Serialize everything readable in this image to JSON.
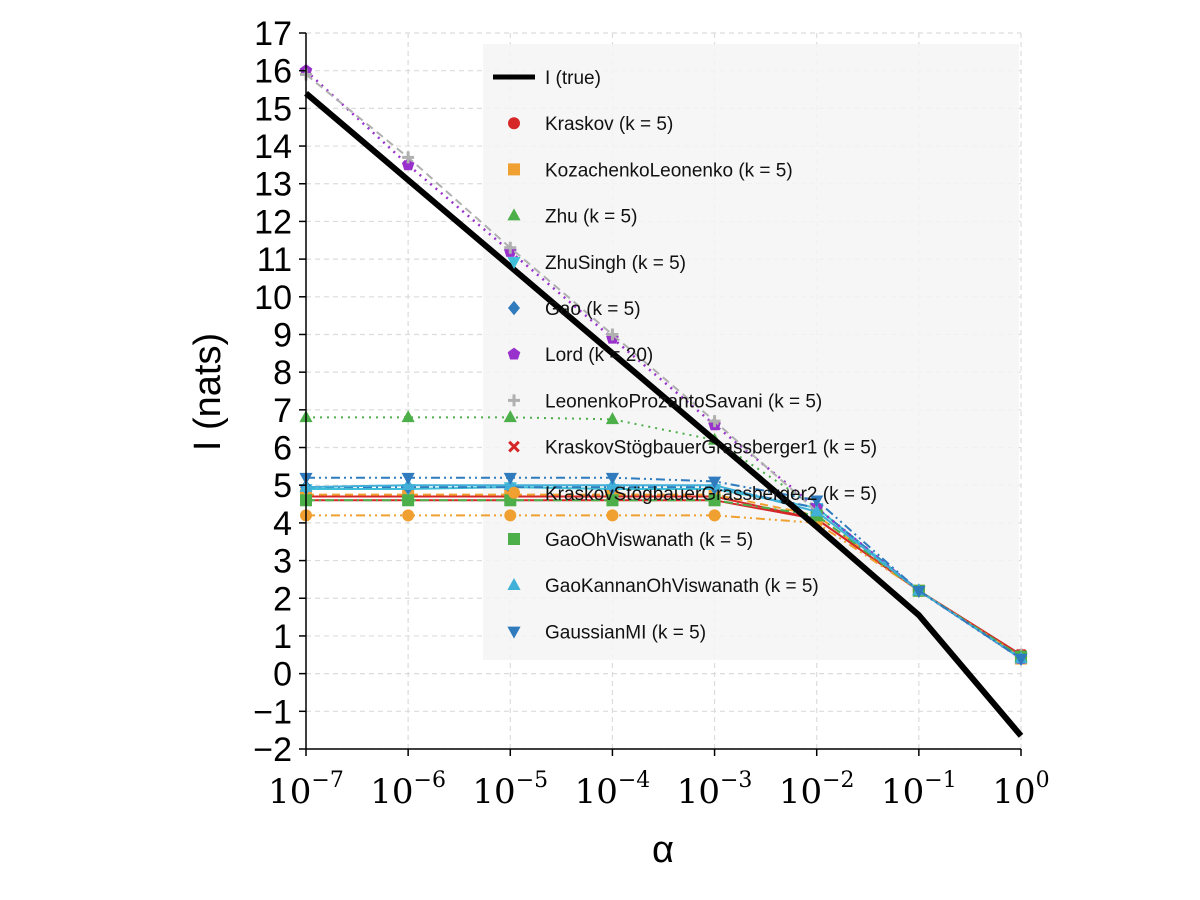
{
  "chart_data": {
    "type": "line",
    "xlabel": "α",
    "ylabel": "I (nats)",
    "xscale": "log",
    "xlim": [
      1e-07,
      1
    ],
    "ylim": [
      -2,
      17
    ],
    "grid": true,
    "legend_position": "upper-right",
    "x_ticks": [
      {
        "base": "10",
        "exp": "−7",
        "value": 1e-07
      },
      {
        "base": "10",
        "exp": "−6",
        "value": 1e-06
      },
      {
        "base": "10",
        "exp": "−5",
        "value": 1e-05
      },
      {
        "base": "10",
        "exp": "−4",
        "value": 0.0001
      },
      {
        "base": "10",
        "exp": "−3",
        "value": 0.001
      },
      {
        "base": "10",
        "exp": "−2",
        "value": 0.01
      },
      {
        "base": "10",
        "exp": "−1",
        "value": 0.1
      },
      {
        "base": "10",
        "exp": "0",
        "value": 1
      }
    ],
    "y_ticks": [
      "−2",
      "−1",
      "0",
      "1",
      "2",
      "3",
      "4",
      "5",
      "6",
      "7",
      "8",
      "9",
      "10",
      "11",
      "12",
      "13",
      "14",
      "15",
      "16",
      "17"
    ],
    "x": [
      1e-07,
      1e-06,
      1e-05,
      0.0001,
      0.001,
      0.01,
      0.1,
      1
    ],
    "series": [
      {
        "name": "I (true)",
        "color": "#000000",
        "marker": "none",
        "dash": "solid",
        "width": 6,
        "values": [
          15.4,
          13.1,
          10.8,
          8.5,
          6.2,
          3.9,
          1.55,
          -1.65
        ]
      },
      {
        "name": "Kraskov (k = 5)",
        "color": "#d62728",
        "marker": "circle",
        "dash": "solid",
        "width": 2,
        "values": [
          4.7,
          4.7,
          4.7,
          4.7,
          4.7,
          4.1,
          2.2,
          0.5
        ]
      },
      {
        "name": "KozachenkoLeonenko (k = 5)",
        "color": "#f0a030",
        "marker": "square",
        "dash": "dash",
        "width": 2,
        "values": [
          4.75,
          4.75,
          4.75,
          4.75,
          4.75,
          4.2,
          2.2,
          0.4
        ]
      },
      {
        "name": "Zhu (k = 5)",
        "color": "#4daf4a",
        "marker": "triangle-up",
        "dash": "dot",
        "width": 2,
        "values": [
          6.8,
          6.8,
          6.8,
          6.75,
          6.2,
          4.4,
          2.2,
          0.45
        ]
      },
      {
        "name": "ZhuSingh (k = 5)",
        "color": "#40c0d8",
        "marker": "triangle-down",
        "dash": "solid",
        "width": 2,
        "values": [
          4.9,
          4.9,
          4.95,
          4.9,
          4.9,
          4.4,
          2.2,
          0.45
        ]
      },
      {
        "name": "Gao (k = 5)",
        "color": "#2f7bbd",
        "marker": "diamond",
        "dash": "dashdot",
        "width": 2,
        "values": [
          4.95,
          4.95,
          4.95,
          4.95,
          4.95,
          4.4,
          2.2,
          0.4
        ]
      },
      {
        "name": "Lord (k = 20)",
        "color": "#9932cc",
        "marker": "pentagon",
        "dash": "dot",
        "width": 2.5,
        "values": [
          16.0,
          13.5,
          11.2,
          8.9,
          6.6,
          4.4,
          2.2,
          0.4
        ]
      },
      {
        "name": "LeonenkoProzantoSavani (k = 5)",
        "color": "#b0b0b0",
        "marker": "plus",
        "dash": "dash",
        "width": 2,
        "values": [
          15.9,
          13.7,
          11.3,
          9.0,
          6.7,
          4.3,
          2.2,
          0.5
        ]
      },
      {
        "name": "KraskovStögbauerGrassberger1 (k = 5)",
        "color": "#d62728",
        "marker": "cross",
        "dash": "solid",
        "width": 2,
        "values": [
          4.6,
          4.6,
          4.6,
          4.6,
          4.6,
          4.1,
          2.2,
          0.5
        ]
      },
      {
        "name": "KraskovStögbauerGrassberger2 (k = 5)",
        "color": "#f0a030",
        "marker": "circle",
        "dash": "dashdotdot",
        "width": 2,
        "values": [
          4.2,
          4.2,
          4.2,
          4.2,
          4.2,
          4.0,
          2.2,
          0.45
        ]
      },
      {
        "name": "GaoOhViswanath (k = 5)",
        "color": "#4daf4a",
        "marker": "square",
        "dash": "dashdot",
        "width": 2,
        "values": [
          4.6,
          4.6,
          4.6,
          4.6,
          4.6,
          4.2,
          2.2,
          0.45
        ]
      },
      {
        "name": "GaoKannanOhViswanath (k = 5)",
        "color": "#40b0d8",
        "marker": "triangle-up",
        "dash": "solid",
        "width": 2,
        "values": [
          4.95,
          5.0,
          5.0,
          5.0,
          5.0,
          4.3,
          2.2,
          0.4
        ]
      },
      {
        "name": "GaussianMI (k = 5)",
        "color": "#2f7bbd",
        "marker": "triangle-down",
        "dash": "dashdotdot",
        "width": 2,
        "values": [
          5.2,
          5.2,
          5.2,
          5.2,
          5.1,
          4.6,
          2.2,
          0.4
        ]
      }
    ]
  }
}
